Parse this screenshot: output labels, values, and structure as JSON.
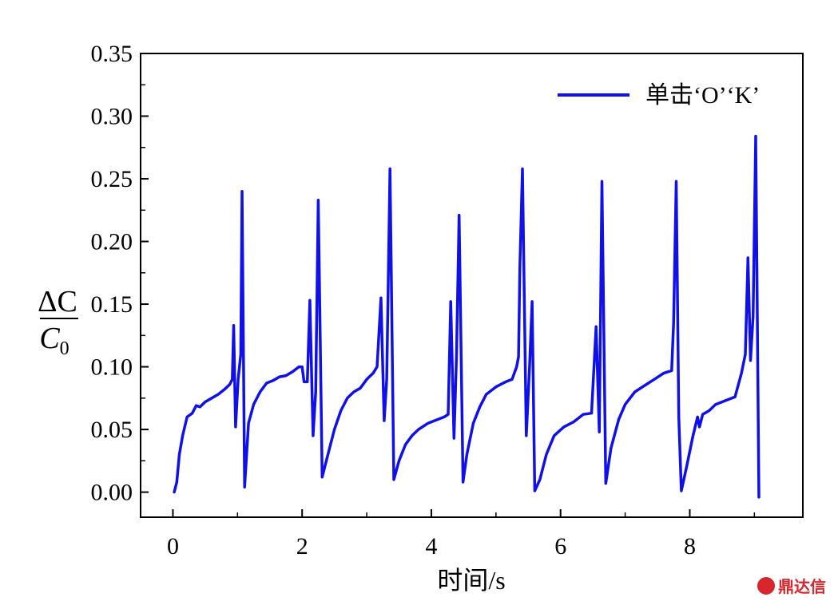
{
  "chart_data": {
    "type": "line",
    "title": "",
    "xlabel": "时间/s",
    "ylabel": {
      "numerator": "ΔC",
      "denominator": "C",
      "subscript": "0"
    },
    "xlim": [
      -0.5,
      9.75
    ],
    "ylim": [
      -0.02,
      0.35
    ],
    "xticks": [
      0,
      2,
      4,
      6,
      8
    ],
    "yticks": [
      0.0,
      0.05,
      0.1,
      0.15,
      0.2,
      0.25,
      0.3,
      0.35
    ],
    "ytick_labels": [
      "0.00",
      "0.05",
      "0.10",
      "0.15",
      "0.20",
      "0.25",
      "0.30",
      "0.35"
    ],
    "xtick_labels": [
      "0",
      "2",
      "4",
      "6",
      "8"
    ],
    "legend_position": "top-right",
    "grid": false,
    "series": [
      {
        "name": "单击‘O’‘K’",
        "color": "#1010e8",
        "points": [
          [
            0.02,
            0.0
          ],
          [
            0.06,
            0.008
          ],
          [
            0.1,
            0.03
          ],
          [
            0.15,
            0.045
          ],
          [
            0.22,
            0.06
          ],
          [
            0.3,
            0.063
          ],
          [
            0.36,
            0.069
          ],
          [
            0.42,
            0.068
          ],
          [
            0.5,
            0.072
          ],
          [
            0.6,
            0.075
          ],
          [
            0.7,
            0.078
          ],
          [
            0.8,
            0.082
          ],
          [
            0.88,
            0.086
          ],
          [
            0.92,
            0.09
          ],
          [
            0.94,
            0.133
          ],
          [
            0.97,
            0.052
          ],
          [
            1.01,
            0.09
          ],
          [
            1.05,
            0.11
          ],
          [
            1.07,
            0.24
          ],
          [
            1.11,
            0.004
          ],
          [
            1.17,
            0.055
          ],
          [
            1.25,
            0.07
          ],
          [
            1.35,
            0.08
          ],
          [
            1.45,
            0.087
          ],
          [
            1.55,
            0.089
          ],
          [
            1.65,
            0.092
          ],
          [
            1.75,
            0.093
          ],
          [
            1.85,
            0.096
          ],
          [
            1.95,
            0.1
          ],
          [
            2.0,
            0.1
          ],
          [
            2.03,
            0.088
          ],
          [
            2.08,
            0.088
          ],
          [
            2.12,
            0.153
          ],
          [
            2.17,
            0.045
          ],
          [
            2.21,
            0.08
          ],
          [
            2.25,
            0.233
          ],
          [
            2.31,
            0.012
          ],
          [
            2.4,
            0.03
          ],
          [
            2.5,
            0.05
          ],
          [
            2.6,
            0.065
          ],
          [
            2.7,
            0.075
          ],
          [
            2.8,
            0.08
          ],
          [
            2.9,
            0.083
          ],
          [
            3.0,
            0.09
          ],
          [
            3.1,
            0.095
          ],
          [
            3.16,
            0.1
          ],
          [
            3.22,
            0.155
          ],
          [
            3.27,
            0.057
          ],
          [
            3.31,
            0.09
          ],
          [
            3.36,
            0.258
          ],
          [
            3.42,
            0.01
          ],
          [
            3.5,
            0.025
          ],
          [
            3.6,
            0.038
          ],
          [
            3.7,
            0.045
          ],
          [
            3.8,
            0.05
          ],
          [
            3.95,
            0.055
          ],
          [
            4.1,
            0.058
          ],
          [
            4.2,
            0.06
          ],
          [
            4.26,
            0.062
          ],
          [
            4.3,
            0.152
          ],
          [
            4.35,
            0.043
          ],
          [
            4.39,
            0.11
          ],
          [
            4.43,
            0.221
          ],
          [
            4.49,
            0.008
          ],
          [
            4.55,
            0.03
          ],
          [
            4.65,
            0.055
          ],
          [
            4.75,
            0.068
          ],
          [
            4.85,
            0.078
          ],
          [
            5.0,
            0.084
          ],
          [
            5.15,
            0.088
          ],
          [
            5.25,
            0.09
          ],
          [
            5.32,
            0.1
          ],
          [
            5.35,
            0.108
          ],
          [
            5.37,
            0.18
          ],
          [
            5.41,
            0.258
          ],
          [
            5.47,
            0.045
          ],
          [
            5.52,
            0.1
          ],
          [
            5.56,
            0.152
          ],
          [
            5.6,
            0.001
          ],
          [
            5.68,
            0.01
          ],
          [
            5.78,
            0.03
          ],
          [
            5.9,
            0.045
          ],
          [
            6.05,
            0.052
          ],
          [
            6.2,
            0.056
          ],
          [
            6.35,
            0.062
          ],
          [
            6.48,
            0.063
          ],
          [
            6.55,
            0.132
          ],
          [
            6.6,
            0.048
          ],
          [
            6.64,
            0.248
          ],
          [
            6.7,
            0.007
          ],
          [
            6.78,
            0.035
          ],
          [
            6.9,
            0.058
          ],
          [
            7.0,
            0.07
          ],
          [
            7.15,
            0.08
          ],
          [
            7.3,
            0.085
          ],
          [
            7.45,
            0.09
          ],
          [
            7.6,
            0.095
          ],
          [
            7.72,
            0.097
          ],
          [
            7.75,
            0.135
          ],
          [
            7.79,
            0.248
          ],
          [
            7.83,
            0.06
          ],
          [
            7.87,
            0.001
          ],
          [
            7.95,
            0.02
          ],
          [
            8.05,
            0.045
          ],
          [
            8.12,
            0.06
          ],
          [
            8.15,
            0.052
          ],
          [
            8.2,
            0.062
          ],
          [
            8.3,
            0.065
          ],
          [
            8.4,
            0.07
          ],
          [
            8.55,
            0.073
          ],
          [
            8.7,
            0.076
          ],
          [
            8.8,
            0.095
          ],
          [
            8.86,
            0.11
          ],
          [
            8.9,
            0.187
          ],
          [
            8.94,
            0.105
          ],
          [
            8.98,
            0.14
          ],
          [
            9.02,
            0.284
          ],
          [
            9.07,
            -0.004
          ]
        ]
      }
    ]
  },
  "watermark": {
    "text": "鼎达信"
  }
}
